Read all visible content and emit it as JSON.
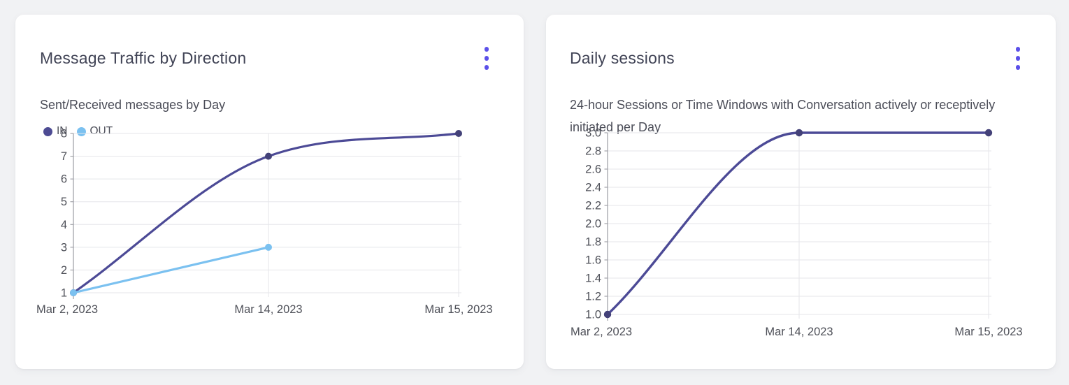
{
  "page": {
    "background": "#f1f2f4"
  },
  "colors": {
    "accent_menu": "#5b50e9",
    "series_in": "#4c4a96",
    "series_in_point": "#434178",
    "series_out": "#7bc1f0",
    "grid": "#e5e6ea",
    "axis": "#9b9ca3",
    "tick_label": "#4f5159"
  },
  "cards": [
    {
      "title": "Message Traffic by Direction",
      "subtitle": "Sent/Received messages by Day",
      "menu_icon": "kebab-menu-icon"
    },
    {
      "title": "Daily sessions",
      "subtitle": "24-hour Sessions or Time Windows with Conversation actively or receptively initiated per Day",
      "menu_icon": "kebab-menu-icon"
    }
  ],
  "chart_data": [
    {
      "type": "line",
      "title": "Message Traffic by Direction",
      "subtitle": "Sent/Received messages by Day",
      "categories": [
        "Mar 2, 2023",
        "Mar 14, 2023",
        "Mar 15, 2023"
      ],
      "series": [
        {
          "name": "IN",
          "color": "#4c4a96",
          "point_color": "#434178",
          "values": [
            1,
            7,
            8
          ]
        },
        {
          "name": "OUT",
          "color": "#7bc1f0",
          "point_color": "#7bc1f0",
          "values": [
            1,
            3,
            null
          ]
        }
      ],
      "ylim": [
        1,
        8
      ],
      "yticks": [
        "8",
        "7",
        "6",
        "5",
        "4",
        "3",
        "2",
        "1"
      ],
      "xlabel": "",
      "ylabel": "",
      "grid": true,
      "legend_position": "top-left",
      "curve": "monotone"
    },
    {
      "type": "line",
      "title": "Daily sessions",
      "subtitle": "24-hour Sessions or Time Windows with Conversation actively or receptively initiated per Day",
      "categories": [
        "Mar 2, 2023",
        "Mar 14, 2023",
        "Mar 15, 2023"
      ],
      "series": [
        {
          "name": "Daily sessions",
          "color": "#4c4a96",
          "point_color": "#434178",
          "values": [
            1.0,
            3.0,
            3.0
          ]
        }
      ],
      "ylim": [
        1.0,
        3.0
      ],
      "yticks": [
        "3.0",
        "2.8",
        "2.6",
        "2.4",
        "2.2",
        "2.0",
        "1.8",
        "1.6",
        "1.4",
        "1.2",
        "1.0"
      ],
      "xlabel": "",
      "ylabel": "",
      "grid": true,
      "legend_position": "none",
      "curve": "monotone"
    }
  ]
}
